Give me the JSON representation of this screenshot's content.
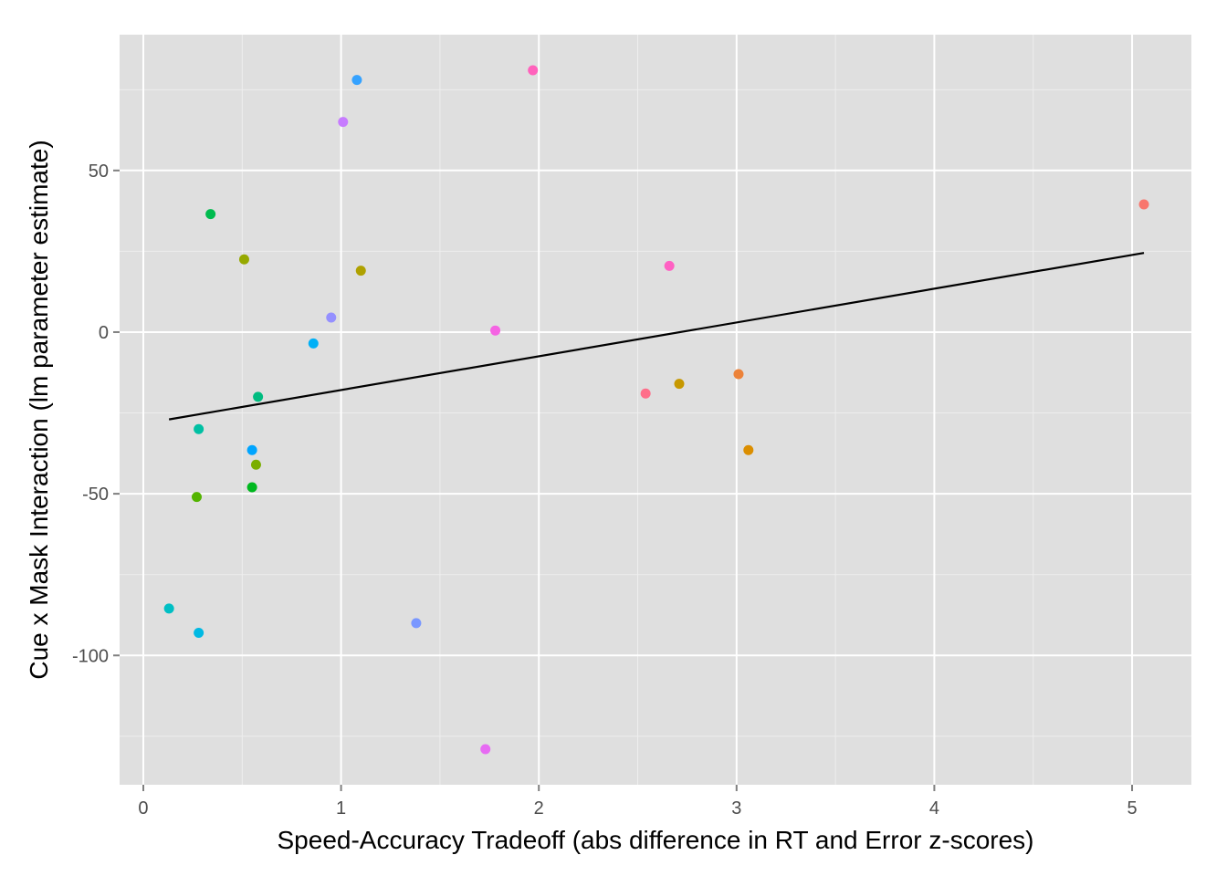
{
  "chart_data": {
    "type": "scatter",
    "title": "",
    "xlabel": "Speed-Accuracy Tradeoff (abs difference in RT and Error z-scores)",
    "ylabel": "Cue x Mask Interaction (lm parameter estimate)",
    "xlim": [
      -0.12,
      5.3
    ],
    "ylim": [
      -140,
      92
    ],
    "x_ticks": [
      0,
      1,
      2,
      3,
      4,
      5
    ],
    "x_tick_labels": [
      "0",
      "1",
      "2",
      "3",
      "4",
      "5"
    ],
    "y_ticks": [
      -100,
      -50,
      0,
      50
    ],
    "y_tick_labels": [
      "-100",
      "-50",
      "0",
      "50"
    ],
    "grid": true,
    "background": "#dfdfdf",
    "grid_color": "#ffffff",
    "legend": "none",
    "points": [
      {
        "x": 5.06,
        "y": 39.5,
        "color": "#f8766d"
      },
      {
        "x": 3.01,
        "y": -13,
        "color": "#ec8239"
      },
      {
        "x": 3.06,
        "y": -36.5,
        "color": "#db8e00"
      },
      {
        "x": 2.71,
        "y": -16,
        "color": "#c79800"
      },
      {
        "x": 1.1,
        "y": 19,
        "color": "#afa100"
      },
      {
        "x": 0.51,
        "y": 22.5,
        "color": "#96a900"
      },
      {
        "x": 0.57,
        "y": -41,
        "color": "#7aae00"
      },
      {
        "x": 0.27,
        "y": -51,
        "color": "#53b400"
      },
      {
        "x": 0.55,
        "y": -48,
        "color": "#00b81f"
      },
      {
        "x": 0.34,
        "y": 36.5,
        "color": "#00bb4e"
      },
      {
        "x": 0.58,
        "y": -20,
        "color": "#00bc80"
      },
      {
        "x": 0.28,
        "y": -30,
        "color": "#00c0a3"
      },
      {
        "x": 0.13,
        "y": -85.5,
        "color": "#00bfc4"
      },
      {
        "x": 0.28,
        "y": -93,
        "color": "#00b9e3"
      },
      {
        "x": 0.86,
        "y": -3.5,
        "color": "#00b0f6"
      },
      {
        "x": 0.55,
        "y": -36.5,
        "color": "#00a5ff"
      },
      {
        "x": 1.08,
        "y": 78,
        "color": "#35a2ff"
      },
      {
        "x": 1.38,
        "y": -90,
        "color": "#7997ff"
      },
      {
        "x": 0.95,
        "y": 4.5,
        "color": "#9590ff"
      },
      {
        "x": 1.01,
        "y": 65,
        "color": "#c77cff"
      },
      {
        "x": 1.73,
        "y": -129,
        "color": "#e76bf3"
      },
      {
        "x": 1.78,
        "y": 0.5,
        "color": "#f564e3"
      },
      {
        "x": 1.97,
        "y": 81,
        "color": "#ff62bc"
      },
      {
        "x": 2.66,
        "y": 20.5,
        "color": "#ff61c3"
      },
      {
        "x": 2.54,
        "y": -19,
        "color": "#fe6e8a"
      }
    ],
    "fit_line": {
      "x": [
        0.13,
        5.06
      ],
      "y": [
        -27,
        24.5
      ],
      "color": "#000000"
    }
  }
}
